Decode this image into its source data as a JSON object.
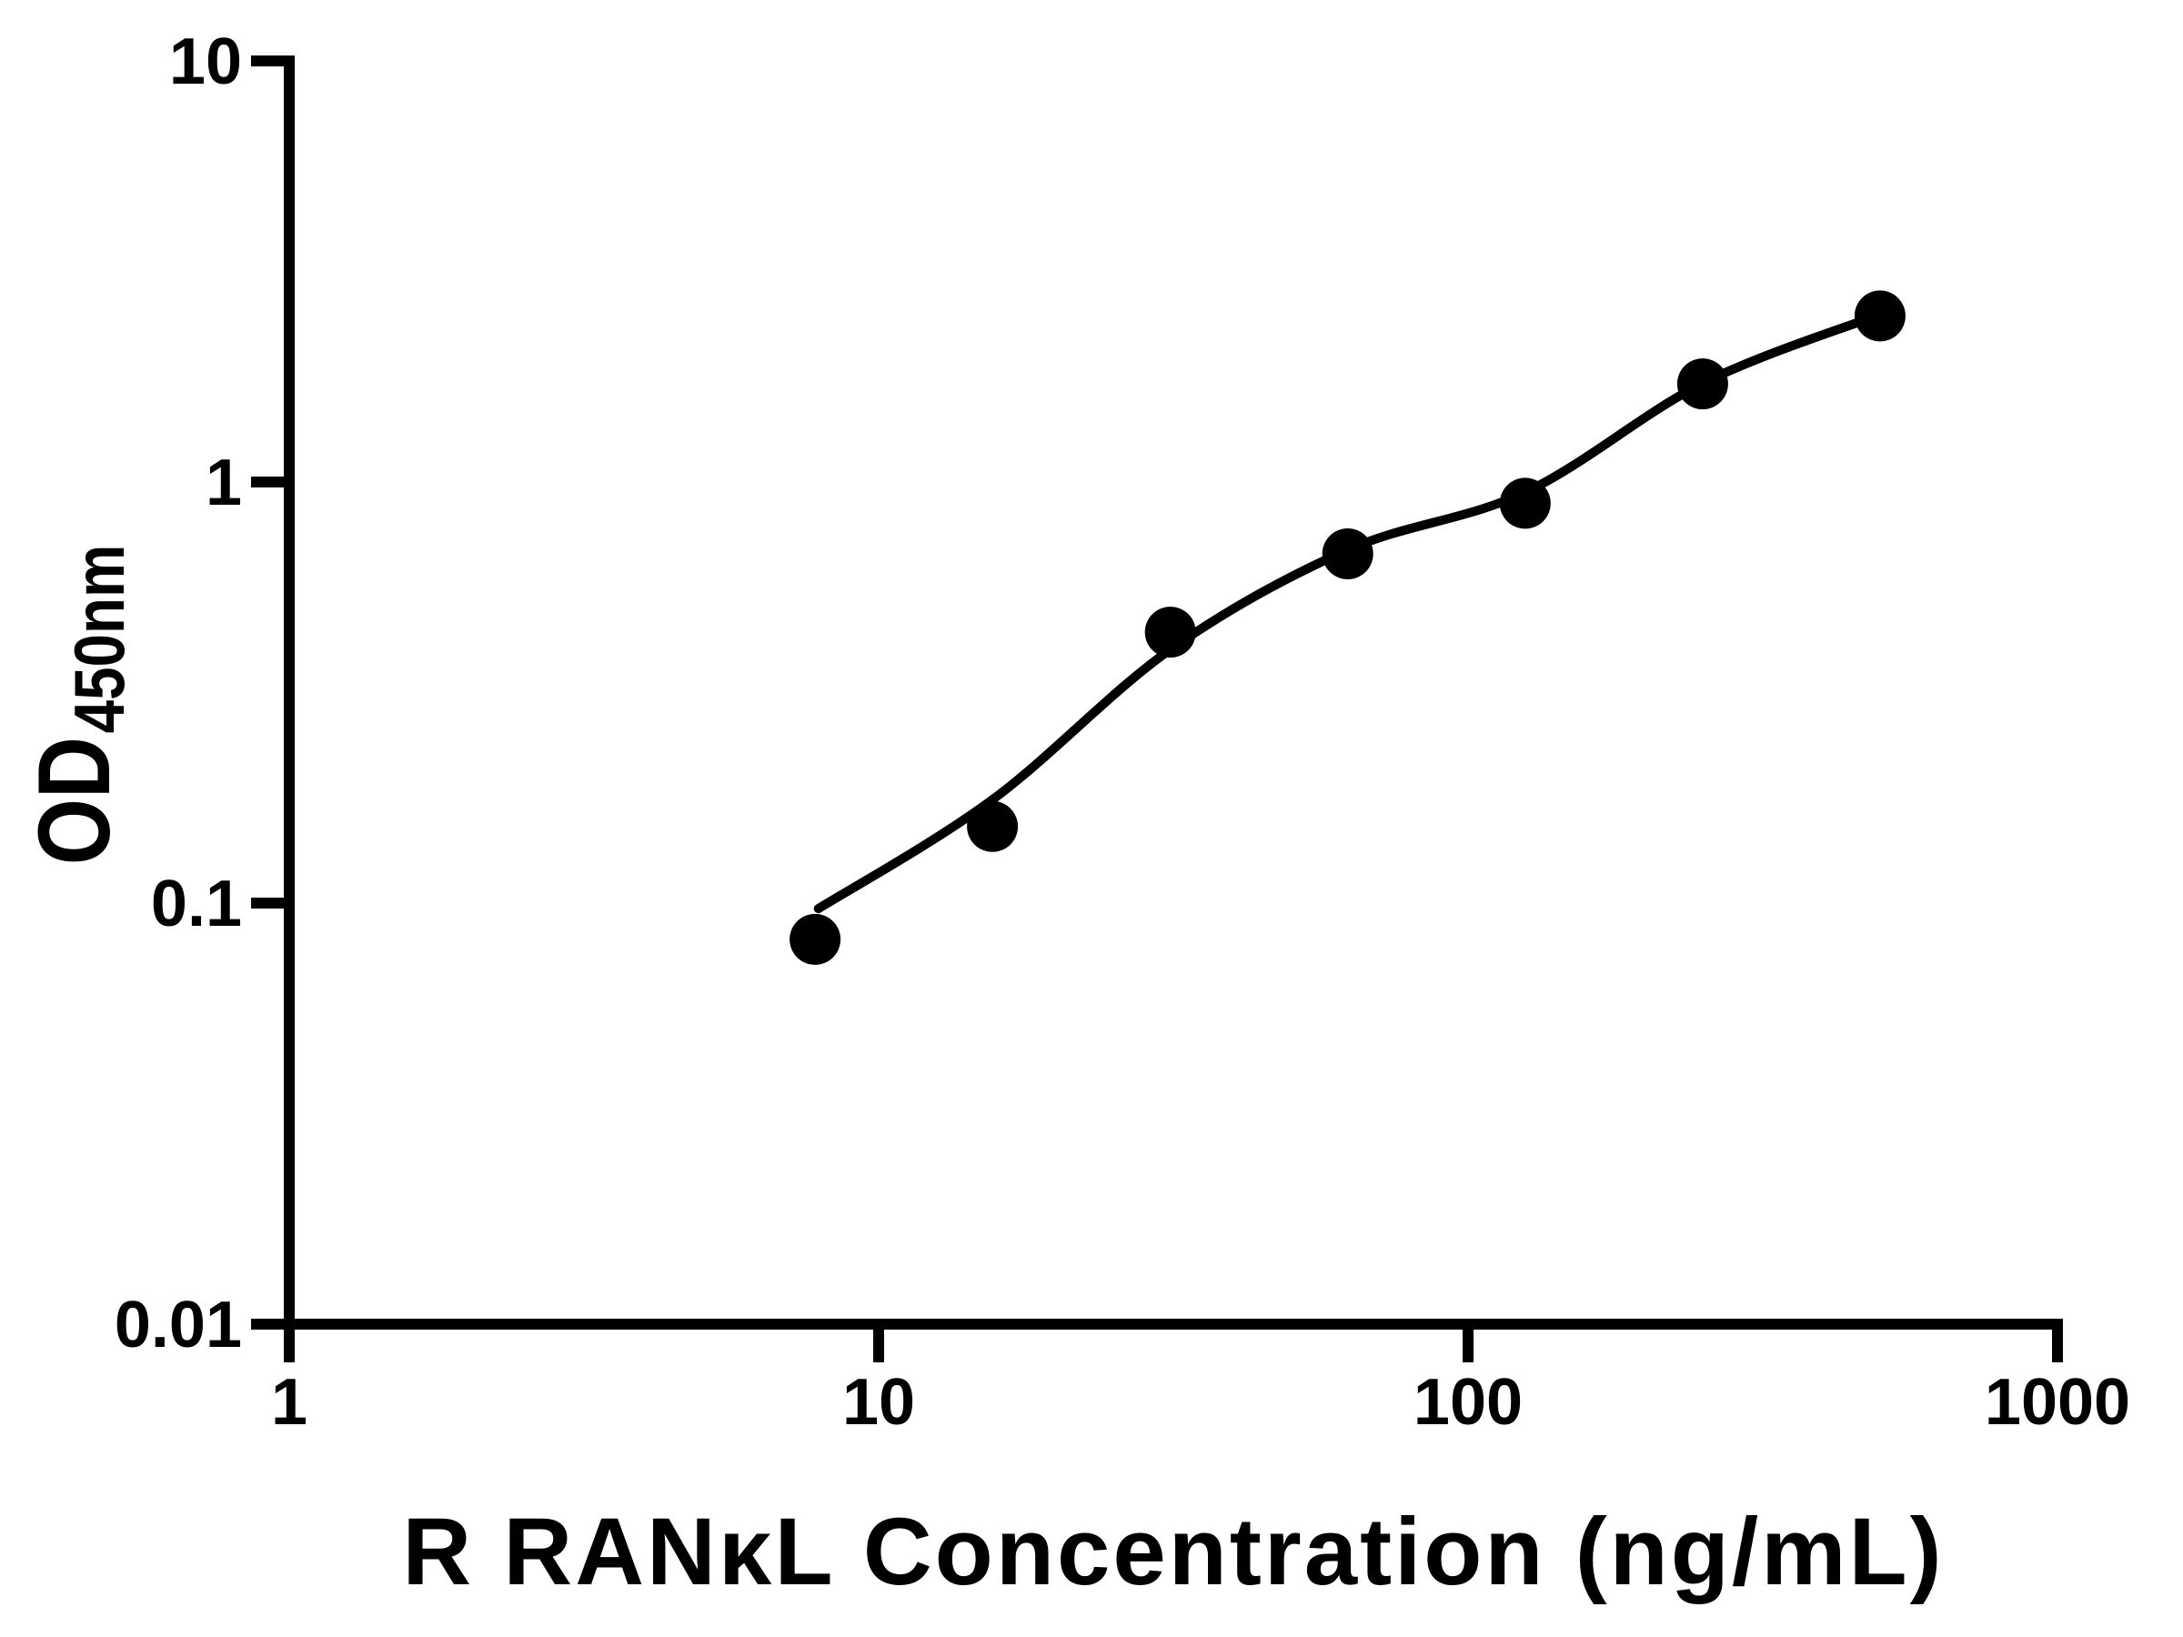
{
  "chart_data": {
    "type": "scatter",
    "title": "",
    "xlabel": "R RANκL Concentration (ng/mL)",
    "ylabel_main": "OD",
    "ylabel_sub": "450nm",
    "x_scale": "log",
    "y_scale": "log",
    "xlim": [
      1,
      1000
    ],
    "ylim": [
      0.01,
      10
    ],
    "grid": false,
    "legend": "none",
    "colors": {
      "foreground": "#000000",
      "background": "#ffffff"
    },
    "x_ticks": [
      {
        "value": 1,
        "label": "1"
      },
      {
        "value": 10,
        "label": "10"
      },
      {
        "value": 100,
        "label": "100"
      },
      {
        "value": 1000,
        "label": "1000"
      }
    ],
    "y_ticks": [
      {
        "value": 10,
        "label": "10"
      },
      {
        "value": 1,
        "label": "1"
      },
      {
        "value": 0.1,
        "label": "0.1"
      },
      {
        "value": 0.01,
        "label": "0.01"
      }
    ],
    "series": [
      {
        "name": "standard-data-points",
        "kind": "scatter",
        "marker": "circle",
        "color": "#000000",
        "points": [
          {
            "x": 7.8,
            "y": 0.082
          },
          {
            "x": 15.6,
            "y": 0.152
          },
          {
            "x": 31.25,
            "y": 0.44
          },
          {
            "x": 62.5,
            "y": 0.675
          },
          {
            "x": 125,
            "y": 0.89
          },
          {
            "x": 250,
            "y": 1.71
          },
          {
            "x": 500,
            "y": 2.48
          }
        ]
      },
      {
        "name": "fit-curve",
        "kind": "line",
        "color": "#000000",
        "points": [
          {
            "x": 7.9,
            "y": 0.097
          },
          {
            "x": 15.6,
            "y": 0.176
          },
          {
            "x": 31.25,
            "y": 0.4
          },
          {
            "x": 62.5,
            "y": 0.69
          },
          {
            "x": 125,
            "y": 0.945
          },
          {
            "x": 250,
            "y": 1.715
          },
          {
            "x": 500,
            "y": 2.5
          }
        ]
      }
    ]
  }
}
